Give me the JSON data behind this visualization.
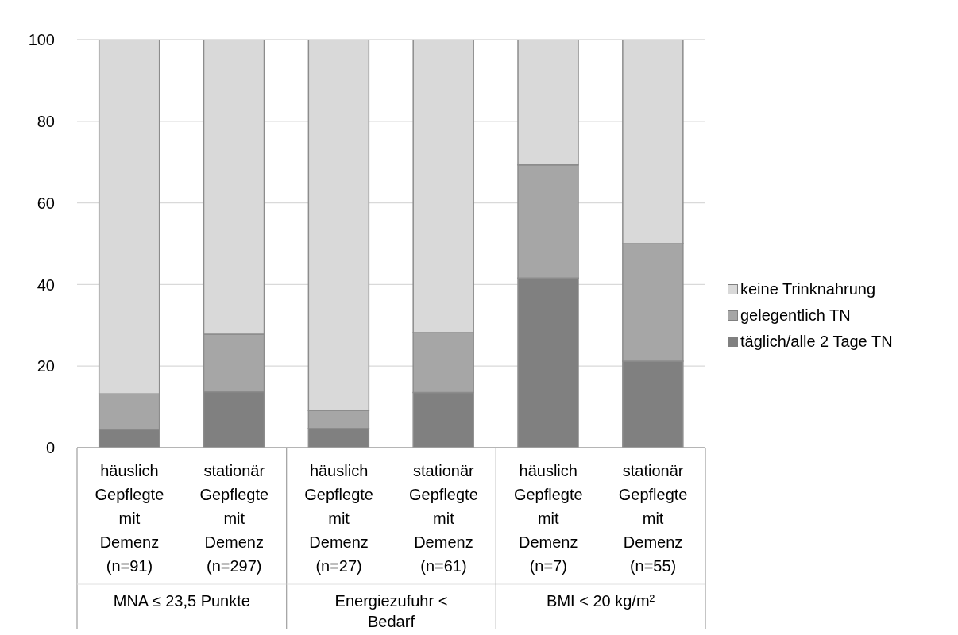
{
  "chart_data": {
    "type": "bar",
    "stacked": true,
    "categories": [
      "häuslich Gepflegte mit Demenz (n=91)",
      "stationär Gepflegte mit Demenz (n=297)",
      "häuslich Gepflegte mit Demenz (n=27)",
      "stationär Gepflegte mit Demenz (n=61)",
      "häuslich Gepflegte mit Demenz (n=7)",
      "stationär Gepflegte mit Demenz (n=55)"
    ],
    "annotations": [
      "MNA ≤ 23,5 Punkte",
      "Energiezufuhr < Bedarf",
      "BMI < 20 kg/m²"
    ],
    "series": [
      {
        "name": "täglich/alle 2 Tage TN",
        "color": "#808080",
        "values": [
          4.5,
          13.7,
          4.7,
          13.5,
          41.6,
          21.2
        ]
      },
      {
        "name": "gelegentlich TN",
        "color": "#a6a6a6",
        "values": [
          8.7,
          14.1,
          4.4,
          14.7,
          27.7,
          28.8
        ]
      },
      {
        "name": "keine Trinknahrung",
        "color": "#d9d9d9",
        "values": [
          86.8,
          72.2,
          90.9,
          71.8,
          30.7,
          50.0
        ]
      }
    ],
    "ylim": [
      0,
      100
    ],
    "yticks": [
      0,
      20,
      40,
      60,
      80,
      100
    ],
    "grid": "y",
    "legend": "right"
  }
}
